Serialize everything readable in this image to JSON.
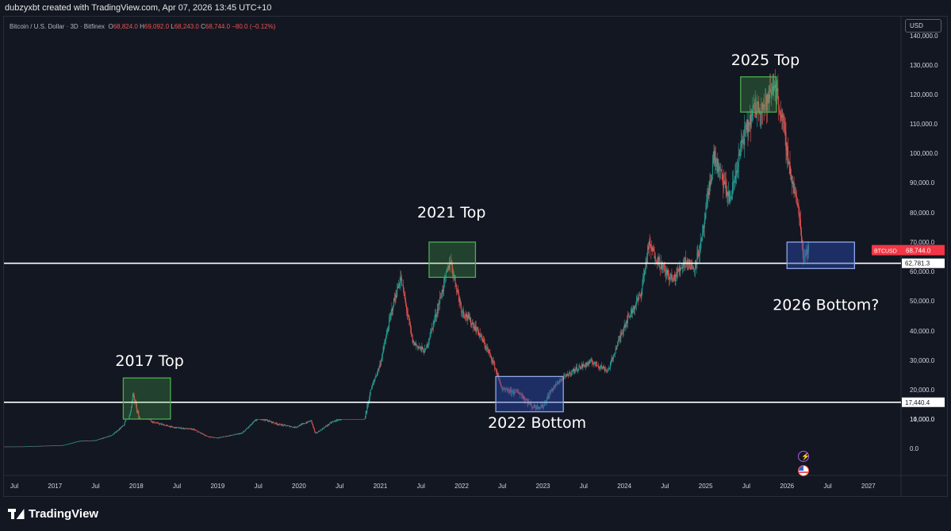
{
  "header": {
    "created_by": "dubzyxbt created with TradingView.com, Apr 07, 2026 13:45 UTC+10"
  },
  "legend": {
    "symbol": "Bitcoin / U.S. Dollar · 3D · Bitfinex",
    "open_label": "O",
    "open": "68,824.0",
    "high_label": "H",
    "high": "69,092.0",
    "low_label": "L",
    "low": "68,243.0",
    "close_label": "C",
    "close": "68,744.0",
    "change": "−80.0 (−0.12%)"
  },
  "currency_button": "USD",
  "brand": "TradingView",
  "icons": [
    "lightning-icon",
    "us-flag-icon"
  ],
  "colors": {
    "background": "#131722",
    "up": "#26a69a",
    "down": "#ef5350",
    "green_box": "#4caf50",
    "blue_box": "#8fa8e8",
    "price_tag": "#f23645"
  },
  "chart_data": {
    "type": "candlestick",
    "symbol": "BTCUSD",
    "y_axis": {
      "ticks": [
        "140,000.0",
        "130,000.0",
        "120,000.0",
        "110,000.0",
        "100,000.0",
        "90,000.0",
        "80,000.0",
        "70,000.0",
        "60,000.0",
        "50,000.0",
        "40,000.0",
        "30,000.0",
        "20,000.0",
        "14,000.0",
        "10,000.0",
        "0.0"
      ],
      "tick_values": [
        140000,
        130000,
        120000,
        110000,
        100000,
        90000,
        80000,
        70000,
        60000,
        50000,
        40000,
        30000,
        20000,
        14000,
        10000,
        0
      ]
    },
    "x_axis": {
      "labels": [
        "Jul",
        "2017",
        "Jul",
        "2018",
        "Jul",
        "2019",
        "Jul",
        "2020",
        "Jul",
        "2021",
        "Jul",
        "2022",
        "Jul",
        "2023",
        "Jul",
        "2024",
        "Jul",
        "2025",
        "Jul",
        "2026",
        "Jul",
        "2027"
      ],
      "dates": [
        2016.5,
        2017.0,
        2017.5,
        2018.0,
        2018.5,
        2019.0,
        2019.5,
        2020.0,
        2020.5,
        2021.0,
        2021.5,
        2022.0,
        2022.5,
        2023.0,
        2023.5,
        2024.0,
        2024.5,
        2025.0,
        2025.5,
        2026.0,
        2026.5,
        2027.0
      ]
    },
    "price_series": {
      "t": [
        2016.0,
        2016.3,
        2016.6,
        2016.9,
        2017.1,
        2017.3,
        2017.5,
        2017.7,
        2017.85,
        2017.96,
        2018.05,
        2018.2,
        2018.45,
        2018.7,
        2018.88,
        2019.0,
        2019.3,
        2019.5,
        2019.75,
        2019.95,
        2020.15,
        2020.2,
        2020.4,
        2020.6,
        2020.8,
        2021.0,
        2021.15,
        2021.25,
        2021.4,
        2021.55,
        2021.7,
        2021.86,
        2022.0,
        2022.2,
        2022.38,
        2022.5,
        2022.7,
        2022.87,
        2023.0,
        2023.2,
        2023.4,
        2023.6,
        2023.8,
        2024.0,
        2024.2,
        2024.3,
        2024.5,
        2024.6,
        2024.75,
        2024.85,
        2024.95,
        2025.1,
        2025.3,
        2025.45,
        2025.6,
        2025.75,
        2025.85,
        2025.95,
        2026.05,
        2026.15,
        2026.2,
        2026.27
      ],
      "v": [
        430,
        600,
        660,
        900,
        1100,
        2500,
        2700,
        4500,
        8000,
        19000,
        13000,
        9000,
        7200,
        6500,
        4000,
        3600,
        5200,
        10500,
        8200,
        7200,
        9500,
        5000,
        8900,
        11000,
        13500,
        29000,
        48000,
        58000,
        36000,
        33000,
        47000,
        64000,
        47000,
        40000,
        30000,
        20000,
        19500,
        16500,
        16600,
        23000,
        27000,
        29500,
        26500,
        42000,
        52000,
        69000,
        60000,
        57000,
        64000,
        61000,
        70000,
        99000,
        84000,
        104000,
        115000,
        117000,
        124000,
        110000,
        92000,
        80000,
        65000,
        68744
      ]
    },
    "current_price": {
      "label": "BTCUSD",
      "value": "68,744.0"
    },
    "levels": [
      {
        "value": 62781.3,
        "label": "62,781.3"
      },
      {
        "value": 17440.4,
        "label": "17,440.4"
      }
    ],
    "zones": [
      {
        "kind": "top",
        "label": "2017 Top",
        "t0": 2017.84,
        "t1": 2018.42,
        "p0": 12500,
        "p1": 24000
      },
      {
        "kind": "top",
        "label": "2021 Top",
        "t0": 2021.6,
        "t1": 2022.17,
        "p0": 58000,
        "p1": 70000
      },
      {
        "kind": "bottom",
        "label": "2022 Bottom",
        "t0": 2022.42,
        "t1": 2023.25,
        "p0": 15500,
        "p1": 24500
      },
      {
        "kind": "top",
        "label": "2025 Top",
        "t0": 2025.43,
        "t1": 2025.87,
        "p0": 114000,
        "p1": 126000
      },
      {
        "kind": "bottom",
        "label": "2026 Bottom?",
        "t0": 2026.0,
        "t1": 2026.83,
        "p0": 61000,
        "p1": 70000
      }
    ]
  }
}
